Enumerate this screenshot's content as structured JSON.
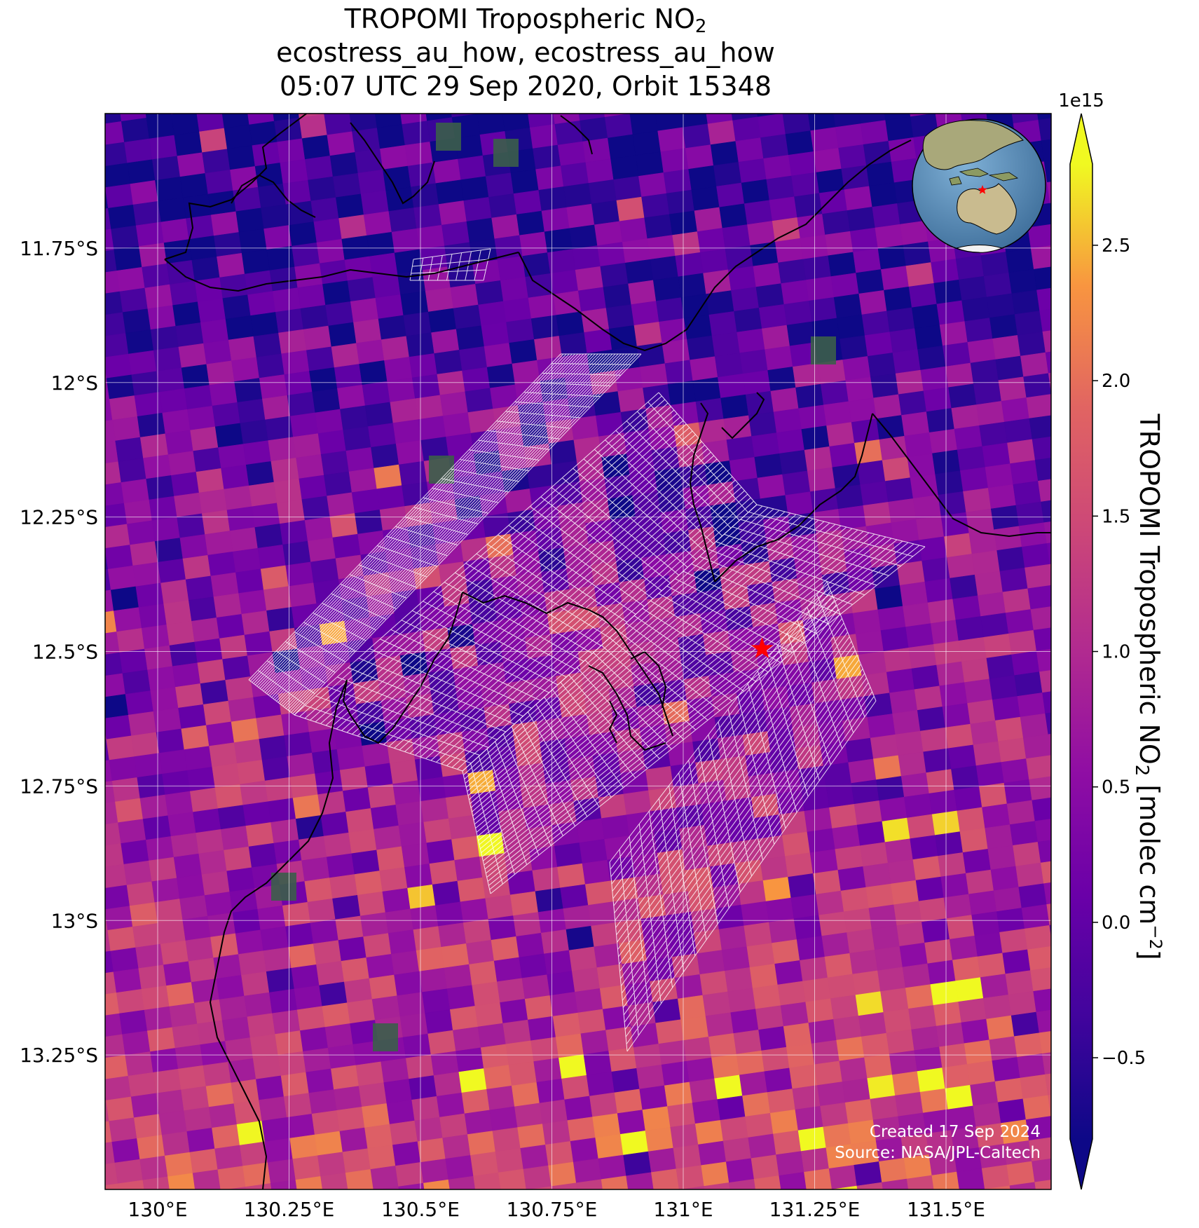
{
  "title": {
    "line1_text": "TROPOMI Tropospheric NO",
    "line1_sub": "2",
    "line2": "ecostress_au_how, ecostress_au_how",
    "line3": "05:07 UTC 29 Sep 2020, Orbit 15348"
  },
  "map": {
    "lon_range": [
      129.9,
      131.7
    ],
    "lat_range": [
      -13.5,
      -11.5
    ],
    "lon_ticks": [
      {
        "value": 130.0,
        "label": "130°E"
      },
      {
        "value": 130.25,
        "label": "130.25°E"
      },
      {
        "value": 130.5,
        "label": "130.5°E"
      },
      {
        "value": 130.75,
        "label": "130.75°E"
      },
      {
        "value": 131.0,
        "label": "131°E"
      },
      {
        "value": 131.25,
        "label": "131.25°E"
      },
      {
        "value": 131.5,
        "label": "131.5°E"
      }
    ],
    "lat_ticks": [
      {
        "value": -11.75,
        "label": "11.75°S"
      },
      {
        "value": -12.0,
        "label": "12°S"
      },
      {
        "value": -12.25,
        "label": "12.25°S"
      },
      {
        "value": -12.5,
        "label": "12.5°S"
      },
      {
        "value": -12.75,
        "label": "12.75°S"
      },
      {
        "value": -13.0,
        "label": "13°S"
      },
      {
        "value": -13.25,
        "label": "13.25°S"
      }
    ],
    "target_marker": {
      "lon": 131.15,
      "lat": -12.495,
      "color": "#ff0000"
    },
    "colormap": "plasma",
    "grid_on": true
  },
  "colorbar": {
    "range": [
      -0.8,
      2.8
    ],
    "exponent_label": "1e15",
    "ticks": [
      {
        "value": -0.5,
        "label": "−0.5"
      },
      {
        "value": 0.0,
        "label": "0.0"
      },
      {
        "value": 0.5,
        "label": "0.5"
      },
      {
        "value": 1.0,
        "label": "1.0"
      },
      {
        "value": 1.5,
        "label": "1.5"
      },
      {
        "value": 2.0,
        "label": "2.0"
      },
      {
        "value": 2.5,
        "label": "2.5"
      }
    ],
    "label_text": "TROPOMI Tropospheric NO",
    "label_sub": "2",
    "label_units": " [molec cm",
    "label_sup": "−2",
    "label_end": "]",
    "extend": "both"
  },
  "credits": {
    "created": "Created 17 Sep 2024",
    "source": "Source: NASA/JPL-Caltech"
  },
  "inset_globe": {
    "ocean_color": "#5b8db8",
    "land_color": "#c9bb8f",
    "marker_color": "#ff0000"
  }
}
